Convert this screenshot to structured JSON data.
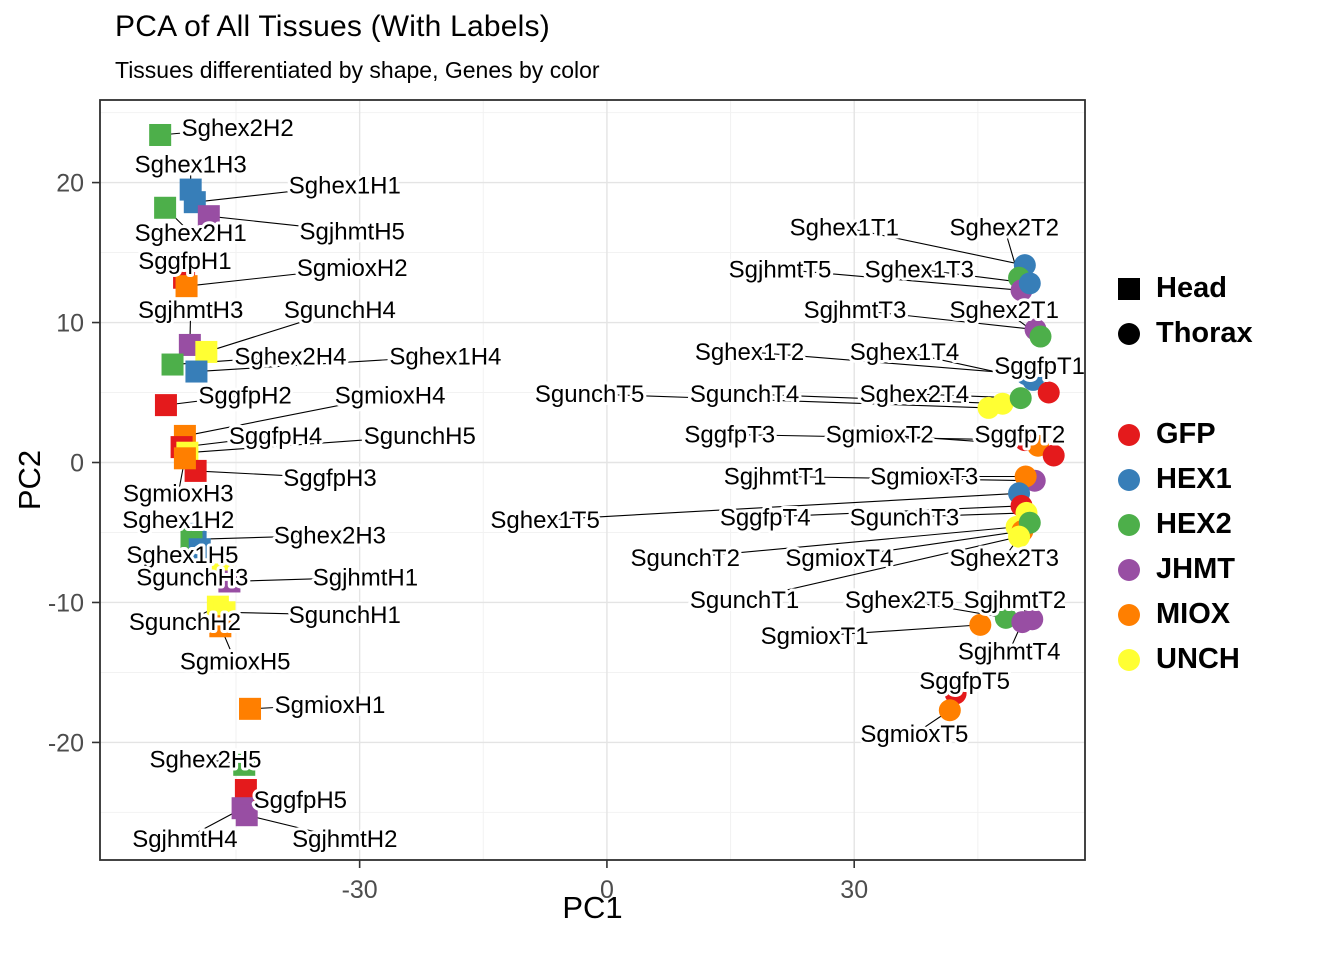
{
  "chart_data": {
    "type": "scatter",
    "title": "PCA of All Tissues (With Labels)",
    "subtitle": "Tissues differentiated by shape, Genes by color",
    "xlabel": "PC1",
    "ylabel": "PC2",
    "xlim": [
      -61.5,
      58
    ],
    "ylim": [
      -28.4,
      25.9
    ],
    "xticks": [
      -30,
      0,
      30
    ],
    "yticks": [
      -20,
      -10,
      0,
      10,
      20
    ],
    "grid": true,
    "shape_legend": {
      "items": [
        {
          "label": "Head",
          "shape": "square"
        },
        {
          "label": "Thorax",
          "shape": "circle"
        }
      ]
    },
    "color_legend": {
      "items": [
        {
          "label": "GFP",
          "color": "#E41A1C"
        },
        {
          "label": "HEX1",
          "color": "#377EB8"
        },
        {
          "label": "HEX2",
          "color": "#4DAF4A"
        },
        {
          "label": "JHMT",
          "color": "#984EA3"
        },
        {
          "label": "MIOX",
          "color": "#FF7F00"
        },
        {
          "label": "UNCH",
          "color": "#FFFF33"
        }
      ]
    },
    "points": [
      {
        "label": "Sghex2H2",
        "gene": "HEX2",
        "tissue": "Head",
        "x": -54.2,
        "y": 23.4,
        "lx": -44.8,
        "ly": 23.9
      },
      {
        "label": "Sghex1H3",
        "gene": "HEX1",
        "tissue": "Head",
        "x": -50.5,
        "y": 19.5,
        "lx": -50.5,
        "ly": 21.3
      },
      {
        "label": "Sghex1H1",
        "gene": "HEX1",
        "tissue": "Head",
        "x": -50.0,
        "y": 18.6,
        "lx": -31.8,
        "ly": 19.8
      },
      {
        "label": "Sghex2H1",
        "gene": "HEX2",
        "tissue": "Head",
        "x": -53.6,
        "y": 18.2,
        "lx": -50.5,
        "ly": 16.4
      },
      {
        "label": "SgjhmtH5",
        "gene": "JHMT",
        "tissue": "Head",
        "x": -48.3,
        "y": 17.6,
        "lx": -30.9,
        "ly": 16.5
      },
      {
        "label": "SggfpH1",
        "gene": "GFP",
        "tissue": "Head",
        "x": -51.3,
        "y": 13.2,
        "lx": -51.2,
        "ly": 14.4
      },
      {
        "label": "SgmioxH2",
        "gene": "MIOX",
        "tissue": "Head",
        "x": -51.0,
        "y": 12.6,
        "lx": -30.9,
        "ly": 13.9
      },
      {
        "label": "SgjhmtH3",
        "gene": "JHMT",
        "tissue": "Head",
        "x": -50.6,
        "y": 8.4,
        "lx": -50.5,
        "ly": 10.9
      },
      {
        "label": "SgunchH4",
        "gene": "UNCH",
        "tissue": "Head",
        "x": -48.6,
        "y": 7.9,
        "lx": -32.4,
        "ly": 10.9
      },
      {
        "label": "Sghex2H4",
        "gene": "HEX2",
        "tissue": "Head",
        "x": -52.7,
        "y": 7.0,
        "lx": -38.4,
        "ly": 7.6
      },
      {
        "label": "Sghex1H4",
        "gene": "HEX1",
        "tissue": "Head",
        "x": -49.8,
        "y": 6.5,
        "lx": -19.6,
        "ly": 7.6
      },
      {
        "label": "SggfpH2",
        "gene": "GFP",
        "tissue": "Head",
        "x": -53.5,
        "y": 4.1,
        "lx": -43.9,
        "ly": 4.8
      },
      {
        "label": "SgmioxH4",
        "gene": "MIOX",
        "tissue": "Head",
        "x": -51.2,
        "y": 1.9,
        "lx": -26.3,
        "ly": 4.8
      },
      {
        "label": "SggfpH4",
        "gene": "GFP",
        "tissue": "Head",
        "x": -51.6,
        "y": 1.1,
        "lx": -40.2,
        "ly": 1.9
      },
      {
        "label": "SgunchH5",
        "gene": "UNCH",
        "tissue": "Head",
        "x": -50.9,
        "y": 0.7,
        "lx": -22.7,
        "ly": 1.9
      },
      {
        "label": "SggfpH3",
        "gene": "GFP",
        "tissue": "Head",
        "x": -49.9,
        "y": -0.6,
        "lx": -33.6,
        "ly": -1.1
      },
      {
        "label": "SgmioxH3",
        "gene": "MIOX",
        "tissue": "Head",
        "x": -51.2,
        "y": 0.3,
        "lx": -52.0,
        "ly": -2.2
      },
      {
        "label": "Sghex1H2",
        "gene": "HEX1",
        "tissue": "Head",
        "x": -49.9,
        "y": -5.1,
        "lx": -52.0,
        "ly": -4.1
      },
      {
        "label": "Sghex2H3",
        "gene": "HEX2",
        "tissue": "Head",
        "x": -50.4,
        "y": -5.5,
        "lx": -33.6,
        "ly": -5.2
      },
      {
        "label": "Sghex1H5",
        "gene": "HEX1",
        "tissue": "Head",
        "x": -49.4,
        "y": -6.2,
        "lx": -51.5,
        "ly": -6.6
      },
      {
        "label": "SgunchH3",
        "gene": "UNCH",
        "tissue": "Head",
        "x": -46.6,
        "y": -8.0,
        "lx": -50.3,
        "ly": -8.2
      },
      {
        "label": "SgjhmtH1",
        "gene": "JHMT",
        "tissue": "Head",
        "x": -45.8,
        "y": -8.5,
        "lx": -29.3,
        "ly": -8.2
      },
      {
        "label": "SgunchH2",
        "gene": "UNCH",
        "tissue": "Head",
        "x": -47.2,
        "y": -10.3,
        "lx": -51.2,
        "ly": -11.4
      },
      {
        "label": "SgunchH1",
        "gene": "UNCH",
        "tissue": "Head",
        "x": -46.4,
        "y": -10.7,
        "lx": -31.8,
        "ly": -10.9
      },
      {
        "label": "SgmioxH5",
        "gene": "MIOX",
        "tissue": "Head",
        "x": -46.9,
        "y": -11.7,
        "lx": -45.1,
        "ly": -14.2
      },
      {
        "label": "SgmioxH1",
        "gene": "MIOX",
        "tissue": "Head",
        "x": -43.3,
        "y": -17.6,
        "lx": -33.6,
        "ly": -17.3
      },
      {
        "label": "Sghex2H5",
        "gene": "HEX2",
        "tissue": "Head",
        "x": -44.0,
        "y": -21.6,
        "lx": -48.7,
        "ly": -21.2
      },
      {
        "label": "SggfpH5",
        "gene": "GFP",
        "tissue": "Head",
        "x": -43.8,
        "y": -23.4,
        "lx": -37.2,
        "ly": -24.1
      },
      {
        "label": "SgjhmtH4",
        "gene": "JHMT",
        "tissue": "Head",
        "x": -44.2,
        "y": -24.7,
        "lx": -51.2,
        "ly": -26.9
      },
      {
        "label": "SgjhmtH2",
        "gene": "JHMT",
        "tissue": "Head",
        "x": -43.7,
        "y": -25.2,
        "lx": -31.8,
        "ly": -26.9
      },
      {
        "label": "Sghex1T1",
        "gene": "HEX1",
        "tissue": "Thorax",
        "x": 50.7,
        "y": 14.1,
        "lx": 28.8,
        "ly": 16.8
      },
      {
        "label": "Sghex2T2",
        "gene": "HEX2",
        "tissue": "Thorax",
        "x": 50.0,
        "y": 13.2,
        "lx": 48.2,
        "ly": 16.8
      },
      {
        "label": "SgjhmtT5",
        "gene": "JHMT",
        "tissue": "Thorax",
        "x": 50.3,
        "y": 12.3,
        "lx": 21.0,
        "ly": 13.8
      },
      {
        "label": "Sghex1T3",
        "gene": "HEX1",
        "tissue": "Thorax",
        "x": 51.3,
        "y": 12.8,
        "lx": 37.9,
        "ly": 13.8
      },
      {
        "label": "SgjhmtT3",
        "gene": "JHMT",
        "tissue": "Thorax",
        "x": 52.0,
        "y": 9.5,
        "lx": 30.1,
        "ly": 10.9
      },
      {
        "label": "Sghex2T1",
        "gene": "HEX2",
        "tissue": "Thorax",
        "x": 52.6,
        "y": 9.0,
        "lx": 48.2,
        "ly": 10.9
      },
      {
        "label": "Sghex1T2",
        "gene": "HEX1",
        "tissue": "Thorax",
        "x": 50.9,
        "y": 6.3,
        "lx": 17.3,
        "ly": 7.9
      },
      {
        "label": "Sghex1T4",
        "gene": "HEX1",
        "tissue": "Thorax",
        "x": 51.7,
        "y": 5.9,
        "lx": 36.1,
        "ly": 7.9
      },
      {
        "label": "SggfpT1",
        "gene": "GFP",
        "tissue": "Thorax",
        "x": 53.6,
        "y": 5.0,
        "lx": 52.5,
        "ly": 6.9
      },
      {
        "label": "SgunchT5",
        "gene": "UNCH",
        "tissue": "Thorax",
        "x": 46.3,
        "y": 3.9,
        "lx": -2.1,
        "ly": 4.9
      },
      {
        "label": "SgunchT4",
        "gene": "UNCH",
        "tissue": "Thorax",
        "x": 48.0,
        "y": 4.2,
        "lx": 16.7,
        "ly": 4.9
      },
      {
        "label": "Sghex2T4",
        "gene": "HEX2",
        "tissue": "Thorax",
        "x": 50.2,
        "y": 4.6,
        "lx": 37.3,
        "ly": 4.9
      },
      {
        "label": "SggfpT3",
        "gene": "GFP",
        "tissue": "Thorax",
        "x": 50.7,
        "y": 1.6,
        "lx": 14.9,
        "ly": 2.0
      },
      {
        "label": "SgmioxT2",
        "gene": "MIOX",
        "tissue": "Thorax",
        "x": 52.3,
        "y": 1.2,
        "lx": 33.1,
        "ly": 2.0
      },
      {
        "label": "SggfpT2",
        "gene": "GFP",
        "tissue": "Thorax",
        "x": 54.2,
        "y": 0.5,
        "lx": 50.1,
        "ly": 2.0
      },
      {
        "label": "SgjhmtT1",
        "gene": "JHMT",
        "tissue": "Thorax",
        "x": 51.9,
        "y": -1.3,
        "lx": 20.4,
        "ly": -1.0
      },
      {
        "label": "SgmioxT3",
        "gene": "MIOX",
        "tissue": "Thorax",
        "x": 50.8,
        "y": -1.0,
        "lx": 38.5,
        "ly": -1.0
      },
      {
        "label": "Sghex1T5",
        "gene": "HEX1",
        "tissue": "Thorax",
        "x": 50.0,
        "y": -2.2,
        "lx": -7.5,
        "ly": -4.1
      },
      {
        "label": "SggfpT4",
        "gene": "GFP",
        "tissue": "Thorax",
        "x": 50.3,
        "y": -3.1,
        "lx": 19.2,
        "ly": -3.9
      },
      {
        "label": "SgunchT3",
        "gene": "UNCH",
        "tissue": "Thorax",
        "x": 50.9,
        "y": -3.6,
        "lx": 36.1,
        "ly": -3.9
      },
      {
        "label": "SgunchT2",
        "gene": "UNCH",
        "tissue": "Thorax",
        "x": 49.7,
        "y": -4.6,
        "lx": 9.5,
        "ly": -6.8
      },
      {
        "label": "SgmioxT4",
        "gene": "MIOX",
        "tissue": "Thorax",
        "x": 50.4,
        "y": -4.9,
        "lx": 28.2,
        "ly": -6.8
      },
      {
        "label": "Sghex2T3",
        "gene": "HEX2",
        "tissue": "Thorax",
        "x": 51.3,
        "y": -4.3,
        "lx": 48.2,
        "ly": -6.8
      },
      {
        "label": "SgunchT1",
        "gene": "UNCH",
        "tissue": "Thorax",
        "x": 50.0,
        "y": -5.3,
        "lx": 16.7,
        "ly": -9.8
      },
      {
        "label": "Sghex2T5",
        "gene": "HEX2",
        "tissue": "Thorax",
        "x": 48.4,
        "y": -11.1,
        "lx": 35.5,
        "ly": -9.8
      },
      {
        "label": "SgjhmtT2",
        "gene": "JHMT",
        "tissue": "Thorax",
        "x": 51.6,
        "y": -11.2,
        "lx": 49.5,
        "ly": -9.8
      },
      {
        "label": "SgmioxT1",
        "gene": "MIOX",
        "tissue": "Thorax",
        "x": 45.3,
        "y": -11.6,
        "lx": 25.2,
        "ly": -12.4
      },
      {
        "label": "SgjhmtT4",
        "gene": "JHMT",
        "tissue": "Thorax",
        "x": 50.4,
        "y": -11.4,
        "lx": 48.8,
        "ly": -13.5
      },
      {
        "label": "SggfpT5",
        "gene": "GFP",
        "tissue": "Thorax",
        "x": 42.3,
        "y": -16.5,
        "lx": 43.4,
        "ly": -15.6
      },
      {
        "label": "SgmioxT5",
        "gene": "MIOX",
        "tissue": "Thorax",
        "x": 41.6,
        "y": -17.7,
        "lx": 37.3,
        "ly": -19.4
      }
    ]
  }
}
